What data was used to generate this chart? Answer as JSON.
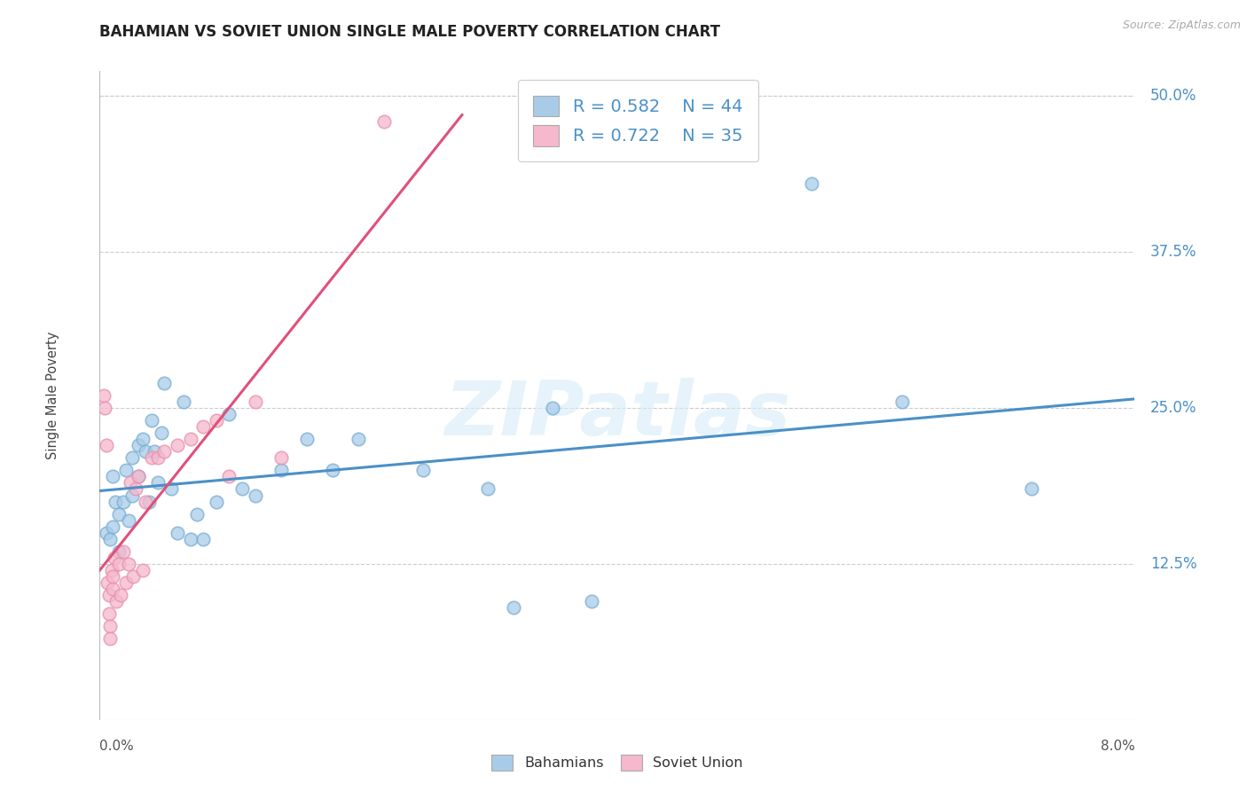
{
  "title": "BAHAMIAN VS SOVIET UNION SINGLE MALE POVERTY CORRELATION CHART",
  "source": "Source: ZipAtlas.com",
  "ylabel": "Single Male Poverty",
  "ytick_vals": [
    0.0,
    0.125,
    0.25,
    0.375,
    0.5
  ],
  "ytick_labels": [
    "",
    "12.5%",
    "25.0%",
    "37.5%",
    "50.0%"
  ],
  "xtick_left_label": "0.0%",
  "xtick_right_label": "8.0%",
  "xlim": [
    0.0,
    0.08
  ],
  "ylim": [
    0.0,
    0.52
  ],
  "legend_bahamian_R": "R = 0.582",
  "legend_bahamian_N": "N = 44",
  "legend_soviet_R": "R = 0.722",
  "legend_soviet_N": "N = 35",
  "color_blue_fill": "#a8cce8",
  "color_pink_fill": "#f5b8cc",
  "color_blue_edge": "#7aadd4",
  "color_pink_edge": "#e890ae",
  "color_blue_line": "#4a90c8",
  "color_pink_line": "#e0507a",
  "color_right_axis": "#4a90c8",
  "color_legend_text": "#4a90c8",
  "watermark": "ZIPatlas",
  "bahamian_x": [
    0.0005,
    0.0008,
    0.001,
    0.001,
    0.0012,
    0.0015,
    0.0015,
    0.0018,
    0.002,
    0.0022,
    0.0025,
    0.0025,
    0.003,
    0.003,
    0.0033,
    0.0035,
    0.0038,
    0.004,
    0.0042,
    0.0045,
    0.0048,
    0.005,
    0.0055,
    0.006,
    0.0065,
    0.007,
    0.0075,
    0.008,
    0.009,
    0.01,
    0.011,
    0.012,
    0.014,
    0.016,
    0.018,
    0.02,
    0.025,
    0.03,
    0.032,
    0.035,
    0.038,
    0.055,
    0.062,
    0.072
  ],
  "bahamian_y": [
    0.15,
    0.145,
    0.195,
    0.155,
    0.175,
    0.165,
    0.135,
    0.175,
    0.2,
    0.16,
    0.18,
    0.21,
    0.195,
    0.22,
    0.225,
    0.215,
    0.175,
    0.24,
    0.215,
    0.19,
    0.23,
    0.27,
    0.185,
    0.15,
    0.255,
    0.145,
    0.165,
    0.145,
    0.175,
    0.245,
    0.185,
    0.18,
    0.2,
    0.225,
    0.2,
    0.225,
    0.2,
    0.185,
    0.09,
    0.25,
    0.095,
    0.43,
    0.255,
    0.185
  ],
  "soviet_x": [
    0.0003,
    0.0004,
    0.0005,
    0.0006,
    0.0007,
    0.0007,
    0.0008,
    0.0008,
    0.0009,
    0.001,
    0.001,
    0.0011,
    0.0013,
    0.0015,
    0.0016,
    0.0018,
    0.002,
    0.0022,
    0.0024,
    0.0026,
    0.0028,
    0.003,
    0.0033,
    0.0035,
    0.004,
    0.0045,
    0.005,
    0.006,
    0.007,
    0.008,
    0.009,
    0.01,
    0.012,
    0.014,
    0.022
  ],
  "soviet_y": [
    0.26,
    0.25,
    0.22,
    0.11,
    0.1,
    0.085,
    0.075,
    0.065,
    0.12,
    0.105,
    0.115,
    0.13,
    0.095,
    0.125,
    0.1,
    0.135,
    0.11,
    0.125,
    0.19,
    0.115,
    0.185,
    0.195,
    0.12,
    0.175,
    0.21,
    0.21,
    0.215,
    0.22,
    0.225,
    0.235,
    0.24,
    0.195,
    0.255,
    0.21,
    0.48
  ]
}
